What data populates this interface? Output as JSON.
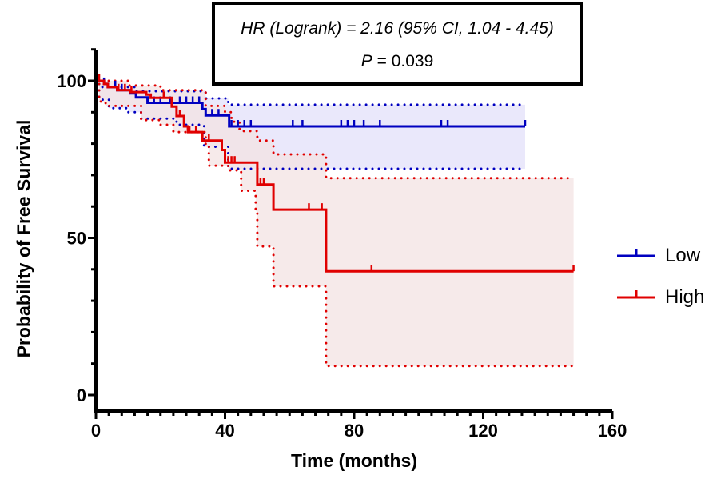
{
  "chart_data": {
    "type": "line",
    "subtype": "kaplan-meier",
    "xlabel": "Time (months)",
    "ylabel": "Probability of Free Survival",
    "xlim": [
      0,
      160
    ],
    "ylim": [
      0,
      100
    ],
    "xticks": [
      0,
      40,
      80,
      120,
      160
    ],
    "yticks": [
      0,
      50,
      100
    ],
    "grid": false,
    "legend_position": "right",
    "annotation": {
      "line1": "HR (Logrank) = 2.16 (95% CI, 1.04 - 4.45)",
      "line2_label": "P",
      "line2_value": " = 0.039"
    },
    "series": [
      {
        "name": "Low",
        "color": "#0000c0",
        "fill": "#e6e4fa",
        "steps": [
          [
            0,
            100
          ],
          [
            2.5,
            99
          ],
          [
            3.7,
            98
          ],
          [
            6.6,
            97
          ],
          [
            10.7,
            96
          ],
          [
            12.4,
            94.7
          ],
          [
            16,
            93
          ],
          [
            33,
            91
          ],
          [
            34,
            89
          ],
          [
            41.3,
            85.5
          ],
          [
            133,
            85.5
          ]
        ],
        "ci_upper": [
          [
            0,
            100
          ],
          [
            2,
            98
          ],
          [
            12,
            96.7
          ],
          [
            34,
            94.4
          ],
          [
            41,
            92.4
          ],
          [
            133,
            92.4
          ]
        ],
        "ci_lower": [
          [
            0,
            100
          ],
          [
            1,
            94
          ],
          [
            4,
            91.3
          ],
          [
            10,
            90
          ],
          [
            14,
            88
          ],
          [
            25,
            86
          ],
          [
            33.5,
            79
          ],
          [
            41,
            72
          ],
          [
            133,
            72
          ]
        ],
        "censored": [
          2.5,
          6,
          8,
          16,
          18,
          20,
          23,
          26,
          28,
          30,
          32,
          36,
          38,
          42,
          44,
          46,
          48,
          61,
          64,
          76,
          78,
          80,
          83,
          88,
          107,
          109,
          133
        ]
      },
      {
        "name": "High",
        "color": "#e00000",
        "fill": "#f3e3e3",
        "steps": [
          [
            0,
            100
          ],
          [
            2.5,
            99
          ],
          [
            3.7,
            98
          ],
          [
            6.6,
            97
          ],
          [
            10.7,
            96.4
          ],
          [
            15.6,
            95.6
          ],
          [
            17,
            94.6
          ],
          [
            23.5,
            91.8
          ],
          [
            25,
            88.8
          ],
          [
            27.3,
            85.5
          ],
          [
            28.5,
            83.7
          ],
          [
            33,
            81
          ],
          [
            39,
            78
          ],
          [
            40,
            74
          ],
          [
            50,
            67
          ],
          [
            55,
            59
          ],
          [
            71.3,
            39.4
          ],
          [
            148,
            39.4
          ]
        ],
        "ci_upper": [
          [
            0,
            100
          ],
          [
            10,
            98.5
          ],
          [
            20,
            97
          ],
          [
            34,
            92
          ],
          [
            40,
            90
          ],
          [
            42,
            87
          ],
          [
            44.5,
            84
          ],
          [
            50,
            81
          ],
          [
            55,
            76.6
          ],
          [
            71.3,
            69
          ],
          [
            148,
            69
          ]
        ],
        "ci_lower": [
          [
            0,
            100
          ],
          [
            1,
            93.4
          ],
          [
            3,
            92
          ],
          [
            14,
            87.5
          ],
          [
            20,
            86
          ],
          [
            24,
            83.7
          ],
          [
            34,
            79
          ],
          [
            35,
            73
          ],
          [
            41,
            71.5
          ],
          [
            45,
            65
          ],
          [
            49.5,
            58.5
          ],
          [
            50,
            47.3
          ],
          [
            55,
            34.6
          ],
          [
            71.3,
            9.2
          ],
          [
            148,
            9.2
          ]
        ],
        "censored": [
          1,
          7,
          9,
          11,
          21,
          26,
          29,
          31,
          35,
          41,
          42,
          43,
          51,
          52,
          66,
          70,
          85.4,
          148
        ]
      }
    ]
  }
}
